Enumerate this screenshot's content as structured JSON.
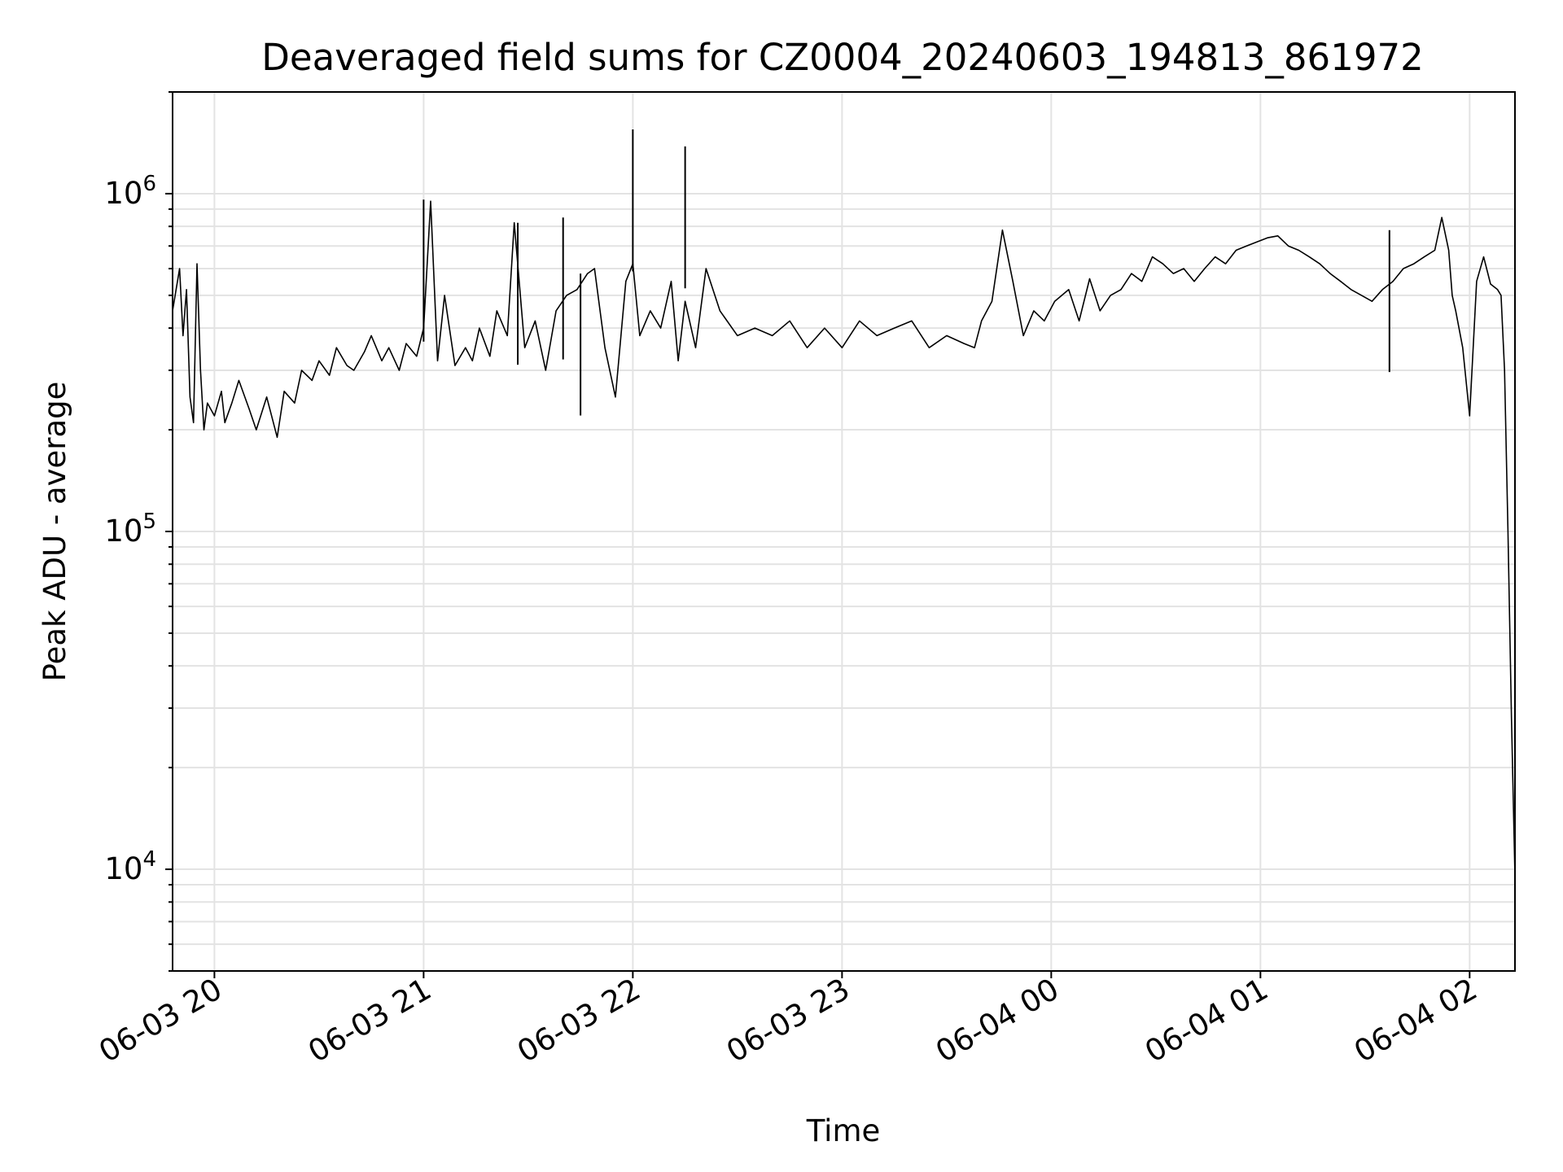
{
  "chart_data": {
    "type": "line",
    "title": "Deaveraged field sums for CZ0004_20240603_194813_861972",
    "xlabel": "Time",
    "ylabel": "Peak ADU - average",
    "yscale": "log",
    "ylim": [
      5000,
      2000000
    ],
    "xlim": [
      "2024-06-03 19:48",
      "2024-06-04 02:13"
    ],
    "grid": true,
    "line_color": "#000000",
    "x_ticks": [
      {
        "value": "2024-06-03 20:00",
        "label": "06-03 20"
      },
      {
        "value": "2024-06-03 21:00",
        "label": "06-03 21"
      },
      {
        "value": "2024-06-03 22:00",
        "label": "06-03 22"
      },
      {
        "value": "2024-06-03 23:00",
        "label": "06-03 23"
      },
      {
        "value": "2024-06-04 00:00",
        "label": "06-04 00"
      },
      {
        "value": "2024-06-04 01:00",
        "label": "06-04 01"
      },
      {
        "value": "2024-06-04 02:00",
        "label": "06-04 02"
      }
    ],
    "y_ticks": [
      {
        "value": 10000,
        "base": "10",
        "exp": "4"
      },
      {
        "value": 100000,
        "base": "10",
        "exp": "5"
      },
      {
        "value": 1000000,
        "base": "10",
        "exp": "6"
      }
    ],
    "series": [
      {
        "x": [
          "2024-06-03 19:48",
          "2024-06-03 19:50",
          "2024-06-03 19:51",
          "2024-06-03 19:52",
          "2024-06-03 19:53",
          "2024-06-03 19:54",
          "2024-06-03 19:55",
          "2024-06-03 19:56",
          "2024-06-03 19:57",
          "2024-06-03 19:58",
          "2024-06-03 20:00",
          "2024-06-03 20:02",
          "2024-06-03 20:03",
          "2024-06-03 20:05",
          "2024-06-03 20:07",
          "2024-06-03 20:10",
          "2024-06-03 20:12",
          "2024-06-03 20:15",
          "2024-06-03 20:18",
          "2024-06-03 20:20",
          "2024-06-03 20:23",
          "2024-06-03 20:25",
          "2024-06-03 20:28",
          "2024-06-03 20:30",
          "2024-06-03 20:33",
          "2024-06-03 20:35",
          "2024-06-03 20:38",
          "2024-06-03 20:40",
          "2024-06-03 20:43",
          "2024-06-03 20:45",
          "2024-06-03 20:48",
          "2024-06-03 20:50",
          "2024-06-03 20:53",
          "2024-06-03 20:55",
          "2024-06-03 20:58",
          "2024-06-03 21:00",
          "2024-06-03 21:02",
          "2024-06-03 21:04",
          "2024-06-03 21:06",
          "2024-06-03 21:09",
          "2024-06-03 21:12",
          "2024-06-03 21:14",
          "2024-06-03 21:16",
          "2024-06-03 21:19",
          "2024-06-03 21:21",
          "2024-06-03 21:24",
          "2024-06-03 21:26",
          "2024-06-03 21:29",
          "2024-06-03 21:32",
          "2024-06-03 21:35",
          "2024-06-03 21:38",
          "2024-06-03 21:41",
          "2024-06-03 21:44",
          "2024-06-03 21:47",
          "2024-06-03 21:49",
          "2024-06-03 21:52",
          "2024-06-03 21:55",
          "2024-06-03 21:58",
          "2024-06-03 22:00",
          "2024-06-03 22:02",
          "2024-06-03 22:05",
          "2024-06-03 22:08",
          "2024-06-03 22:11",
          "2024-06-03 22:13",
          "2024-06-03 22:15",
          "2024-06-03 22:18",
          "2024-06-03 22:21",
          "2024-06-03 22:25",
          "2024-06-03 22:30",
          "2024-06-03 22:35",
          "2024-06-03 22:40",
          "2024-06-03 22:45",
          "2024-06-03 22:50",
          "2024-06-03 22:55",
          "2024-06-03 23:00",
          "2024-06-03 23:05",
          "2024-06-03 23:10",
          "2024-06-03 23:15",
          "2024-06-03 23:20",
          "2024-06-03 23:25",
          "2024-06-03 23:30",
          "2024-06-03 23:35",
          "2024-06-03 23:38",
          "2024-06-03 23:40",
          "2024-06-03 23:43",
          "2024-06-03 23:46",
          "2024-06-03 23:49",
          "2024-06-03 23:52",
          "2024-06-03 23:55",
          "2024-06-03 23:58",
          "2024-06-04 00:01",
          "2024-06-04 00:05",
          "2024-06-04 00:08",
          "2024-06-04 00:11",
          "2024-06-04 00:14",
          "2024-06-04 00:17",
          "2024-06-04 00:20",
          "2024-06-04 00:23",
          "2024-06-04 00:26",
          "2024-06-04 00:29",
          "2024-06-04 00:32",
          "2024-06-04 00:35",
          "2024-06-04 00:38",
          "2024-06-04 00:41",
          "2024-06-04 00:44",
          "2024-06-04 00:47",
          "2024-06-04 00:50",
          "2024-06-04 00:53",
          "2024-06-04 00:56",
          "2024-06-04 00:59",
          "2024-06-04 01:02",
          "2024-06-04 01:05",
          "2024-06-04 01:08",
          "2024-06-04 01:11",
          "2024-06-04 01:14",
          "2024-06-04 01:17",
          "2024-06-04 01:20",
          "2024-06-04 01:23",
          "2024-06-04 01:26",
          "2024-06-04 01:29",
          "2024-06-04 01:32",
          "2024-06-04 01:35",
          "2024-06-04 01:38",
          "2024-06-04 01:41",
          "2024-06-04 01:44",
          "2024-06-04 01:47",
          "2024-06-04 01:50",
          "2024-06-04 01:52",
          "2024-06-04 01:54",
          "2024-06-04 01:55",
          "2024-06-04 01:56",
          "2024-06-04 01:58",
          "2024-06-04 02:00",
          "2024-06-04 02:02",
          "2024-06-04 02:04",
          "2024-06-04 02:06",
          "2024-06-04 02:08",
          "2024-06-04 02:09",
          "2024-06-04 02:10",
          "2024-06-04 02:11",
          "2024-06-04 02:12",
          "2024-06-04 02:13"
        ],
        "y": [
          450000,
          600000,
          380000,
          520000,
          250000,
          210000,
          620000,
          300000,
          200000,
          240000,
          220000,
          260000,
          210000,
          240000,
          280000,
          230000,
          200000,
          250000,
          190000,
          260000,
          240000,
          300000,
          280000,
          320000,
          290000,
          350000,
          310000,
          300000,
          340000,
          380000,
          320000,
          350000,
          300000,
          360000,
          330000,
          400000,
          950000,
          320000,
          500000,
          310000,
          350000,
          320000,
          400000,
          330000,
          450000,
          380000,
          820000,
          350000,
          420000,
          300000,
          450000,
          500000,
          520000,
          580000,
          600000,
          350000,
          250000,
          550000,
          620000,
          380000,
          450000,
          400000,
          550000,
          320000,
          480000,
          350000,
          600000,
          450000,
          380000,
          400000,
          380000,
          420000,
          350000,
          400000,
          350000,
          420000,
          380000,
          400000,
          420000,
          350000,
          380000,
          360000,
          350000,
          420000,
          480000,
          780000,
          550000,
          380000,
          450000,
          420000,
          480000,
          520000,
          420000,
          560000,
          450000,
          500000,
          520000,
          580000,
          550000,
          650000,
          620000,
          580000,
          600000,
          550000,
          600000,
          650000,
          620000,
          680000,
          700000,
          720000,
          740000,
          750000,
          700000,
          680000,
          650000,
          620000,
          580000,
          550000,
          520000,
          500000,
          480000,
          520000,
          550000,
          600000,
          620000,
          650000,
          680000,
          850000,
          680000,
          500000,
          450000,
          350000,
          220000,
          550000,
          650000,
          540000,
          520000,
          500000,
          300000,
          100000,
          28000,
          9500
        ]
      },
      {
        "x": [
          "2024-06-03 21:00",
          "2024-06-03 21:27",
          "2024-06-03 21:40",
          "2024-06-03 21:45",
          "2024-06-03 22:00",
          "2024-06-03 22:15",
          "2024-06-04 01:37"
        ],
        "y": [
          960000,
          820000,
          850000,
          580000,
          1550000,
          1380000,
          780000
        ]
      }
    ]
  }
}
